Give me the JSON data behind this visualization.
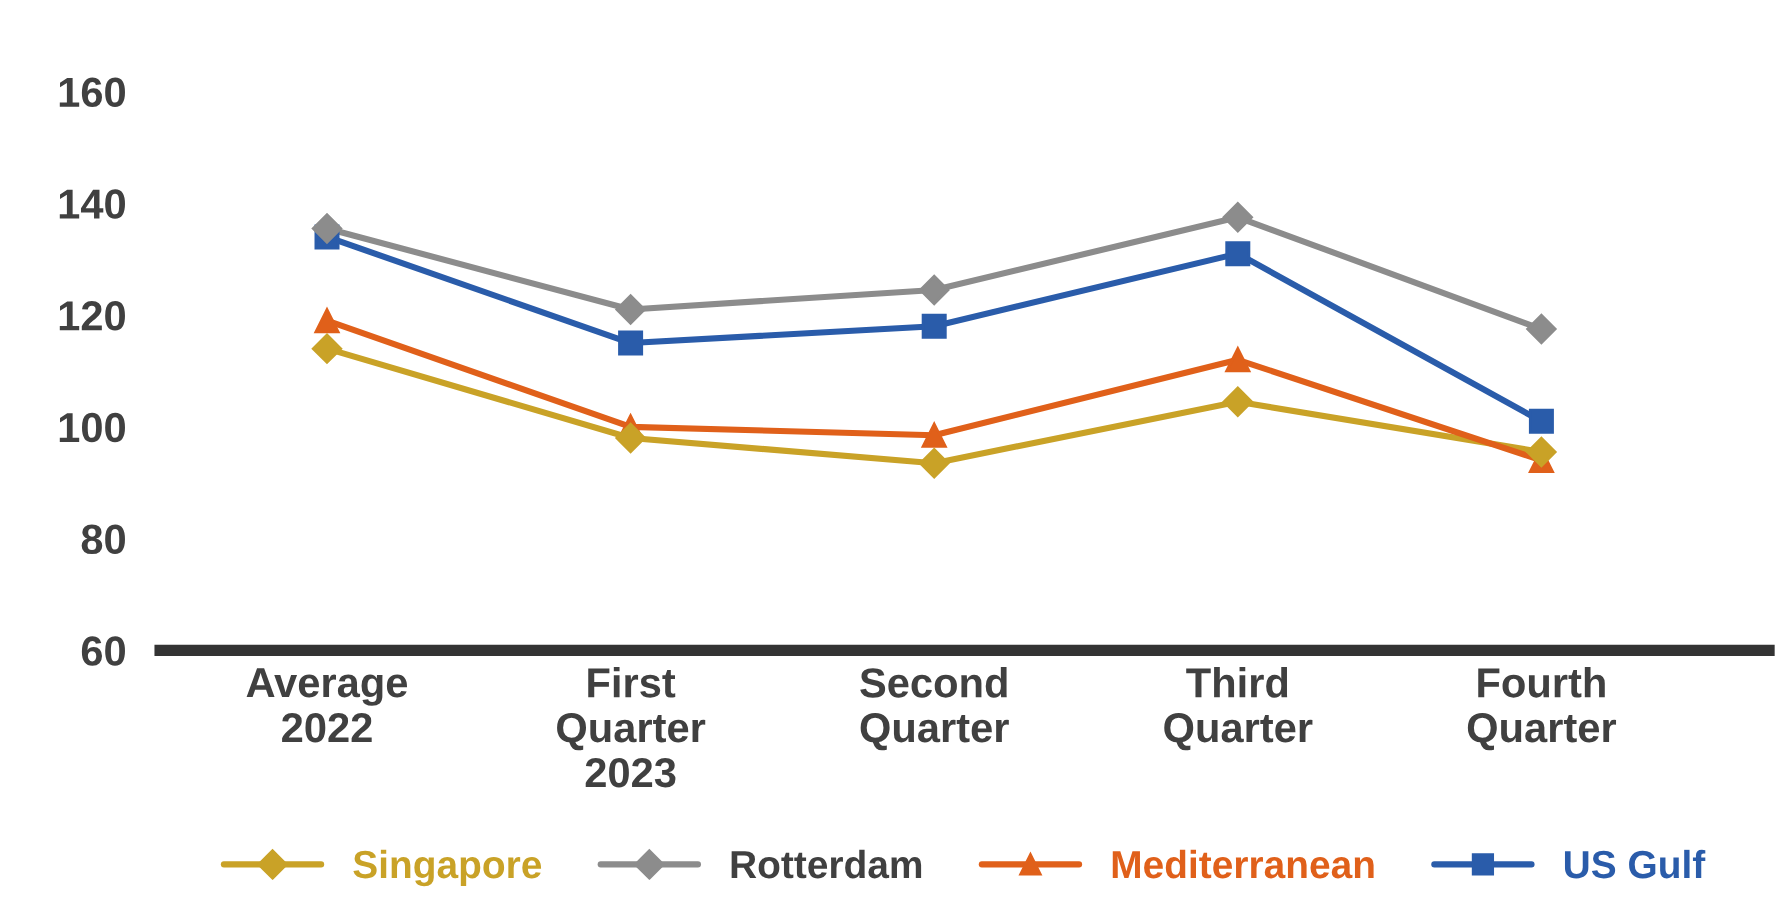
{
  "chart_data": {
    "type": "line",
    "categories": [
      "Average\n2022",
      "First\nQuarter\n2023",
      "Second\nQuarter",
      "Third\nQuarter",
      "Fourth\nQuarter"
    ],
    "series": [
      {
        "name": "Singapore",
        "color": "#c9a227",
        "marker": "diamond",
        "values": [
          114,
          98,
          93.5,
          104.5,
          95.5
        ]
      },
      {
        "name": "Rotterdam",
        "color": "#8c8c8c",
        "marker": "diamond",
        "values": [
          135.5,
          121,
          124.5,
          137.5,
          117.5
        ]
      },
      {
        "name": "Mediterranean",
        "color": "#e0601a",
        "marker": "triangle",
        "values": [
          119,
          100,
          98.5,
          112,
          94
        ]
      },
      {
        "name": "US Gulf",
        "color": "#2a5caa",
        "marker": "square",
        "values": [
          134,
          115,
          118,
          131,
          101
        ]
      }
    ],
    "ylim": [
      60,
      160
    ],
    "yticks": [
      60,
      80,
      100,
      120,
      140,
      160
    ],
    "grid": false,
    "legend": "bottom",
    "line_style": "solid"
  }
}
